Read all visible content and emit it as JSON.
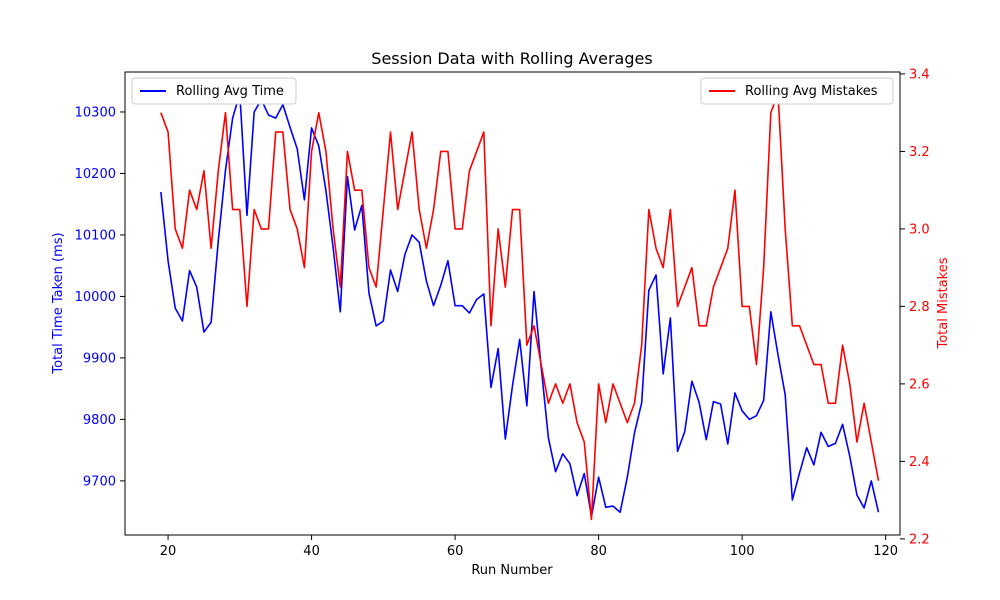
{
  "chart_data": {
    "type": "line",
    "title": "Session Data with Rolling Averages",
    "xlabel": "Run Number",
    "y1label": "Total Time Taken (ms)",
    "y2label": "Total Mistakes",
    "xlim": [
      14,
      122
    ],
    "y1lim": [
      9612,
      10365
    ],
    "y2lim": [
      2.21,
      3.405
    ],
    "xticks": [
      20,
      40,
      60,
      80,
      100,
      120
    ],
    "y1ticks": [
      9700,
      9800,
      9900,
      10000,
      10100,
      10200,
      10300
    ],
    "y2ticks": [
      2.2,
      2.4,
      2.6,
      2.8,
      3.0,
      3.2,
      3.4
    ],
    "y2tick_labels": [
      "2.2",
      "2.4",
      "2.6",
      "2.8",
      "3.0",
      "3.2",
      "3.4"
    ],
    "legend_left": "top-left",
    "legend_right": "top-right",
    "colors": {
      "time": "#0000ff",
      "mistakes": "#ff0000",
      "axis": "#000000"
    },
    "series": [
      {
        "name": "Rolling Avg Time",
        "axis": "left",
        "x": [
          19,
          20,
          21,
          22,
          23,
          24,
          25,
          26,
          27,
          28,
          29,
          30,
          31,
          32,
          33,
          34,
          35,
          36,
          37,
          38,
          39,
          40,
          41,
          42,
          43,
          44,
          45,
          46,
          47,
          48,
          49,
          50,
          51,
          52,
          53,
          54,
          55,
          56,
          57,
          58,
          59,
          60,
          61,
          62,
          63,
          64,
          65,
          66,
          67,
          68,
          69,
          70,
          71,
          72,
          73,
          74,
          75,
          76,
          77,
          78,
          79,
          80,
          81,
          82,
          83,
          84,
          85,
          86,
          87,
          88,
          89,
          90,
          91,
          92,
          93,
          94,
          95,
          96,
          97,
          98,
          99,
          100,
          101,
          102,
          103,
          104,
          105,
          106,
          107,
          108,
          109,
          110,
          111,
          112,
          113,
          114,
          115,
          116,
          117,
          118,
          119
        ],
        "values": [
          10170,
          10058,
          9981,
          9960,
          10042,
          10015,
          9942,
          9958,
          10090,
          10205,
          10290,
          10330,
          10132,
          10300,
          10320,
          10295,
          10290,
          10312,
          10275,
          10240,
          10157,
          10274,
          10245,
          10172,
          10080,
          9975,
          10195,
          10108,
          10148,
          10005,
          9952,
          9960,
          10043,
          10008,
          10068,
          10100,
          10088,
          10025,
          9985,
          10018,
          10058,
          9985,
          9985,
          9973,
          9995,
          10004,
          9852,
          9915,
          9768,
          9855,
          9930,
          9822,
          10008,
          9885,
          9770,
          9715,
          9744,
          9728,
          9676,
          9712,
          9642,
          9706,
          9657,
          9659,
          9649,
          9706,
          9778,
          9827,
          10010,
          10035,
          9874,
          9965,
          9748,
          9780,
          9862,
          9828,
          9767,
          9829,
          9825,
          9760,
          9843,
          9814,
          9800,
          9806,
          9831,
          9975,
          9905,
          9840,
          9669,
          9713,
          9754,
          9726,
          9779,
          9756,
          9761,
          9792,
          9740,
          9677,
          9656,
          9700,
          9649
        ]
      },
      {
        "name": "Rolling Avg Mistakes",
        "axis": "right",
        "x": [
          19,
          20,
          21,
          22,
          23,
          24,
          25,
          26,
          27,
          28,
          29,
          30,
          31,
          32,
          33,
          34,
          35,
          36,
          37,
          38,
          39,
          40,
          41,
          42,
          43,
          44,
          45,
          46,
          47,
          48,
          49,
          50,
          51,
          52,
          53,
          54,
          55,
          56,
          57,
          58,
          59,
          60,
          61,
          62,
          63,
          64,
          65,
          66,
          67,
          68,
          69,
          70,
          71,
          72,
          73,
          74,
          75,
          76,
          77,
          78,
          79,
          80,
          81,
          82,
          83,
          84,
          85,
          86,
          87,
          88,
          89,
          90,
          91,
          92,
          93,
          94,
          95,
          96,
          97,
          98,
          99,
          100,
          101,
          102,
          103,
          104,
          105,
          106,
          107,
          108,
          109,
          110,
          111,
          112,
          113,
          114,
          115,
          116,
          117,
          118,
          119
        ],
        "values": [
          3.3,
          3.25,
          3.0,
          2.95,
          3.1,
          3.05,
          3.15,
          2.95,
          3.15,
          3.3,
          3.05,
          3.05,
          2.8,
          3.05,
          3.0,
          3.0,
          3.25,
          3.25,
          3.05,
          3.0,
          2.9,
          3.2,
          3.3,
          3.2,
          3.0,
          2.85,
          3.2,
          3.1,
          3.1,
          2.9,
          2.85,
          3.05,
          3.25,
          3.05,
          3.15,
          3.25,
          3.05,
          2.95,
          3.05,
          3.2,
          3.2,
          3.0,
          3.0,
          3.15,
          3.2,
          3.25,
          2.75,
          3.0,
          2.85,
          3.05,
          3.05,
          2.7,
          2.75,
          2.65,
          2.55,
          2.6,
          2.55,
          2.6,
          2.5,
          2.45,
          2.25,
          2.6,
          2.5,
          2.6,
          2.55,
          2.5,
          2.55,
          2.7,
          3.05,
          2.95,
          2.9,
          3.05,
          2.8,
          2.85,
          2.9,
          2.75,
          2.75,
          2.85,
          2.9,
          2.95,
          3.1,
          2.8,
          2.8,
          2.65,
          2.9,
          3.3,
          3.35,
          3.0,
          2.75,
          2.75,
          2.7,
          2.65,
          2.65,
          2.55,
          2.55,
          2.7,
          2.6,
          2.45,
          2.55,
          2.45,
          2.35
        ]
      }
    ]
  }
}
